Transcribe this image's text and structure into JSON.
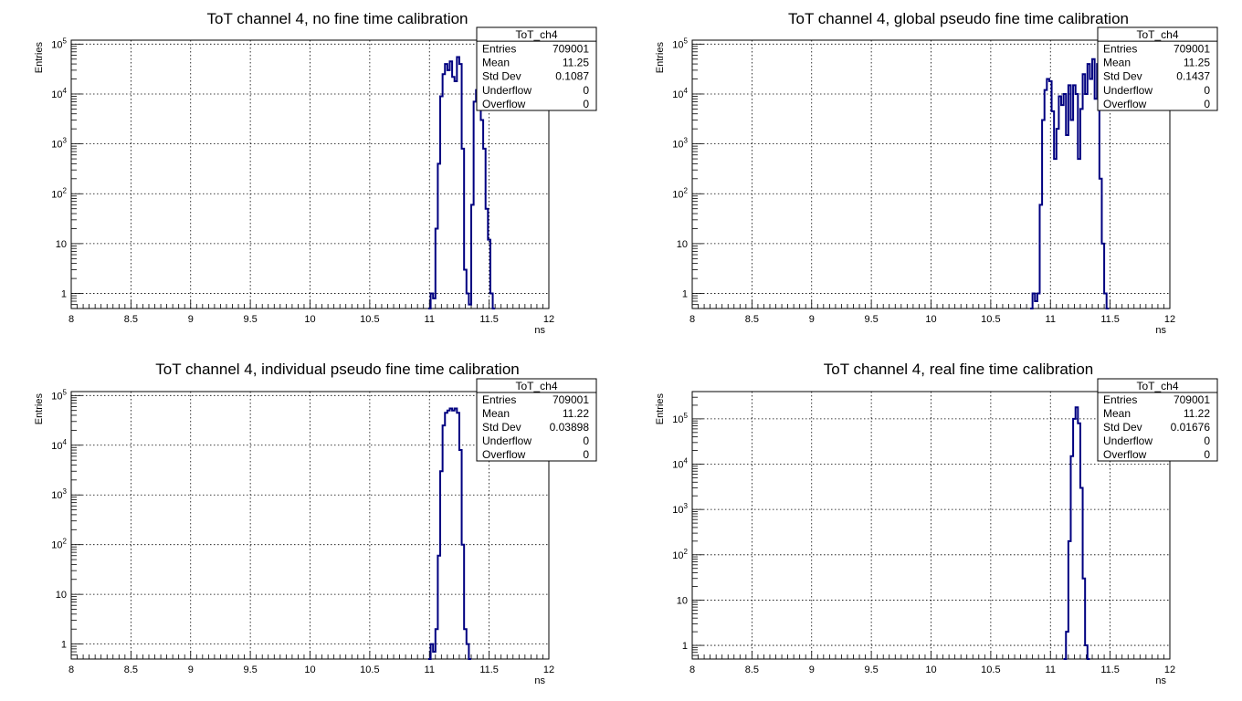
{
  "chart_data": [
    {
      "type": "histogram",
      "title": "ToT channel 4, no fine time calibration",
      "xlabel": "ns",
      "ylabel": "Entries",
      "xlim": [
        8,
        12
      ],
      "ylim": [
        0.5,
        120000
      ],
      "log_y": true,
      "grid": true,
      "x_ticks": [
        "8",
        "8.5",
        "9",
        "9.5",
        "10",
        "10.5",
        "11",
        "11.5",
        "12"
      ],
      "y_ticks": [
        "1",
        "10",
        "10^2",
        "10^3",
        "10^4",
        "10^5"
      ],
      "stats_box": {
        "title": "ToT_ch4",
        "rows": [
          {
            "label": "Entries",
            "value": "709001"
          },
          {
            "label": "Mean",
            "value": "11.25"
          },
          {
            "label": "Std Dev",
            "value": "0.1087"
          },
          {
            "label": "Underflow",
            "value": "0"
          },
          {
            "label": "Overflow",
            "value": "0"
          }
        ]
      },
      "series": [
        {
          "color": "#000080",
          "x": [
            11.0,
            11.02,
            11.04,
            11.06,
            11.08,
            11.1,
            11.12,
            11.14,
            11.16,
            11.18,
            11.2,
            11.22,
            11.24,
            11.26,
            11.28,
            11.3,
            11.32,
            11.34,
            11.36,
            11.38,
            11.4,
            11.42,
            11.44,
            11.46,
            11.48,
            11.5,
            11.52,
            11.54
          ],
          "values": [
            0,
            1,
            0.8,
            20,
            400,
            9000,
            25000,
            40000,
            30000,
            45000,
            22000,
            18000,
            55000,
            40000,
            800,
            3,
            1,
            0.6,
            60,
            7000,
            12000,
            11000,
            3000,
            800,
            50,
            12,
            1,
            0
          ]
        }
      ]
    },
    {
      "type": "histogram",
      "title": "ToT channel 4, global pseudo fine time calibration",
      "xlabel": "ns",
      "ylabel": "Entries",
      "xlim": [
        8,
        12
      ],
      "ylim": [
        0.5,
        120000
      ],
      "log_y": true,
      "grid": true,
      "x_ticks": [
        "8",
        "8.5",
        "9",
        "9.5",
        "10",
        "10.5",
        "11",
        "11.5",
        "12"
      ],
      "y_ticks": [
        "1",
        "10",
        "10^2",
        "10^3",
        "10^4",
        "10^5"
      ],
      "stats_box": {
        "title": "ToT_ch4",
        "rows": [
          {
            "label": "Entries",
            "value": "709001"
          },
          {
            "label": "Mean",
            "value": "11.25"
          },
          {
            "label": "Std Dev",
            "value": "0.1437"
          },
          {
            "label": "Underflow",
            "value": "0"
          },
          {
            "label": "Overflow",
            "value": "0"
          }
        ]
      },
      "series": [
        {
          "color": "#000080",
          "x": [
            10.84,
            10.86,
            10.88,
            10.9,
            10.92,
            10.94,
            10.96,
            10.98,
            11.0,
            11.02,
            11.04,
            11.06,
            11.08,
            11.1,
            11.12,
            11.14,
            11.16,
            11.18,
            11.2,
            11.22,
            11.24,
            11.26,
            11.28,
            11.3,
            11.32,
            11.34,
            11.36,
            11.38,
            11.4,
            11.42,
            11.44,
            11.46,
            11.48
          ],
          "values": [
            0,
            1,
            0.7,
            1,
            60,
            3000,
            12000,
            20000,
            18000,
            4500,
            500,
            2000,
            9000,
            6000,
            10000,
            1500,
            15000,
            3000,
            15000,
            10000,
            500,
            5000,
            25000,
            10000,
            40000,
            20000,
            50000,
            8000,
            40000,
            200,
            10,
            1,
            0
          ]
        }
      ]
    },
    {
      "type": "histogram",
      "title": "ToT channel 4, individual pseudo fine time calibration",
      "xlabel": "ns",
      "ylabel": "Entries",
      "xlim": [
        8,
        12
      ],
      "ylim": [
        0.5,
        120000
      ],
      "log_y": true,
      "grid": true,
      "x_ticks": [
        "8",
        "8.5",
        "9",
        "9.5",
        "10",
        "10.5",
        "11",
        "11.5",
        "12"
      ],
      "y_ticks": [
        "1",
        "10",
        "10^2",
        "10^3",
        "10^4",
        "10^5"
      ],
      "stats_box": {
        "title": "ToT_ch4",
        "rows": [
          {
            "label": "Entries",
            "value": "709001"
          },
          {
            "label": "Mean",
            "value": "11.22"
          },
          {
            "label": "Std Dev",
            "value": "0.03898"
          },
          {
            "label": "Underflow",
            "value": "0"
          },
          {
            "label": "Overflow",
            "value": "0"
          }
        ]
      },
      "series": [
        {
          "color": "#000080",
          "x": [
            11.0,
            11.02,
            11.04,
            11.06,
            11.08,
            11.1,
            11.12,
            11.14,
            11.16,
            11.18,
            11.2,
            11.22,
            11.24,
            11.26,
            11.28,
            11.3,
            11.32,
            11.34
          ],
          "values": [
            0,
            1,
            0.7,
            2,
            60,
            3000,
            25000,
            45000,
            50000,
            55000,
            50000,
            55000,
            45000,
            8000,
            100,
            2,
            1,
            0
          ]
        }
      ]
    },
    {
      "type": "histogram",
      "title": "ToT channel 4, real fine time calibration",
      "xlabel": "ns",
      "ylabel": "Entries",
      "xlim": [
        8,
        12
      ],
      "ylim": [
        0.5,
        400000
      ],
      "log_y": true,
      "grid": true,
      "x_ticks": [
        "8",
        "8.5",
        "9",
        "9.5",
        "10",
        "10.5",
        "11",
        "11.5",
        "12"
      ],
      "y_ticks": [
        "1",
        "10",
        "10^2",
        "10^3",
        "10^4",
        "10^5"
      ],
      "stats_box": {
        "title": "ToT_ch4",
        "rows": [
          {
            "label": "Entries",
            "value": "709001"
          },
          {
            "label": "Mean",
            "value": "11.22"
          },
          {
            "label": "Std Dev",
            "value": "0.01676"
          },
          {
            "label": "Underflow",
            "value": "0"
          },
          {
            "label": "Overflow",
            "value": "0"
          }
        ]
      },
      "series": [
        {
          "color": "#000080",
          "x": [
            11.12,
            11.14,
            11.16,
            11.18,
            11.2,
            11.22,
            11.24,
            11.26,
            11.28,
            11.3,
            11.32
          ],
          "values": [
            0,
            2,
            200,
            15000,
            100000,
            180000,
            80000,
            3000,
            30,
            1,
            0
          ]
        }
      ]
    }
  ]
}
